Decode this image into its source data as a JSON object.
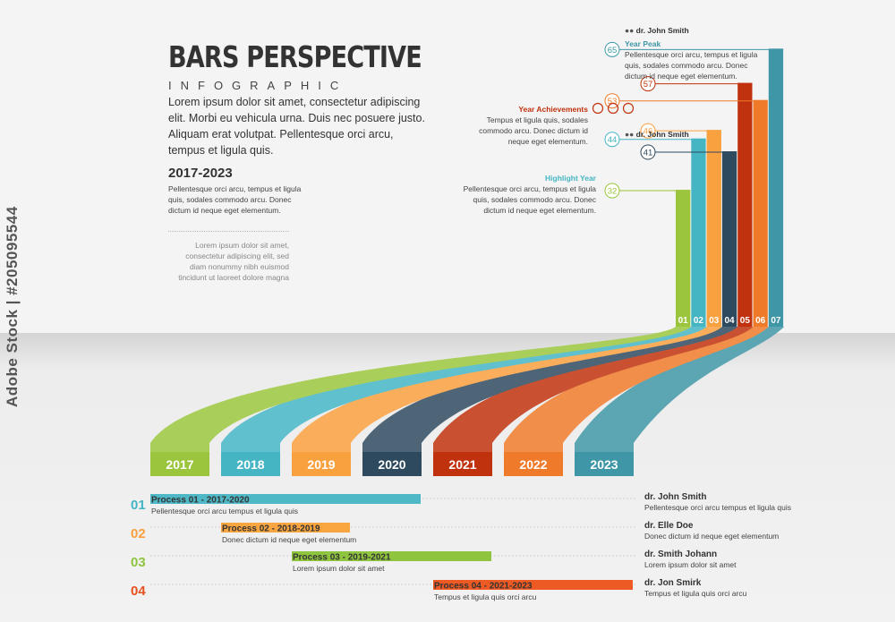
{
  "header": {
    "title": "BARS PERSPECTIVE",
    "subtitle": "INFOGRAPHIC",
    "intro": "Lorem ipsum dolor sit amet, consectetur adipiscing elit. Morbi eu vehicula urna. Duis nec posuere justo. Aliquam erat volutpat. Pellentesque orci arcu, tempus et ligula quis.",
    "range_title": "2017-2023",
    "range_text": "Pellentesque orci arcu, tempus et ligula quis, sodales commodo arcu. Donec  dictum id neque eget elementum.",
    "note_text": "Lorem ipsum dolor sit amet, consectetur adipiscing elit, sed diam nonummy nibh euismod tincidunt ut laoreet dolore magna"
  },
  "watermark": "Adobe Stock | #205095544",
  "chart_data": {
    "type": "bar",
    "categories": [
      "01",
      "02",
      "03",
      "04",
      "05",
      "06",
      "07"
    ],
    "years": [
      "2017",
      "2018",
      "2019",
      "2020",
      "2021",
      "2022",
      "2023"
    ],
    "values": [
      32,
      44,
      46,
      41,
      57,
      53,
      65
    ],
    "colors": [
      "#9bc53d",
      "#45b5c4",
      "#f9a03f",
      "#2e4a5f",
      "#c0320e",
      "#ee7a2a",
      "#3f96a6"
    ],
    "ylim": [
      0,
      68
    ]
  },
  "callouts": {
    "year_peak": {
      "person": "dr. John Smith",
      "title": "Year Peak",
      "text": "Pellentesque orci arcu, tempus et ligula quis, sodales commodo arcu. Donec dictum id neque eget elementum."
    },
    "year_achievements": {
      "title": "Year Achievements",
      "text": "Tempus et ligula quis, sodales commodo arcu. Donec dictum id neque eget elementum."
    },
    "bar06_person": "dr. John Smith",
    "highlight_year": {
      "title": "Highlight Year",
      "text": "Pellentesque orci arcu, tempus et ligula quis, sodales commodo arcu. Donec dictum id neque eget elementum."
    }
  },
  "processes": [
    {
      "num": "01",
      "label": "Process 01 - 2017-2020",
      "desc": "Pellentesque orci arcu tempus et ligula quis",
      "start": 2017,
      "end": 2020,
      "color": "#4fb8c6",
      "num_color": "#45b5c4",
      "person": "dr. John Smith",
      "person_desc": "Pellentesque orci arcu tempus et ligula quis"
    },
    {
      "num": "02",
      "label": "Process 02 - 2018-2019",
      "desc": "Donec dictum id neque eget elementum",
      "start": 2018,
      "end": 2019,
      "color": "#f9a640",
      "num_color": "#f9a03f",
      "person": "dr. Elle Doe",
      "person_desc": "Donec dictum id neque eget elementum"
    },
    {
      "num": "03",
      "label": "Process 03 - 2019-2021",
      "desc": "Lorem ipsum dolor sit amet",
      "start": 2019,
      "end": 2021,
      "color": "#8fc43f",
      "num_color": "#8fc43f",
      "person": "dr. Smith Johann",
      "person_desc": "Lorem ipsum dolor sit amet"
    },
    {
      "num": "04",
      "label": "Process 04 - 2021-2023",
      "desc": "Tempus et ligula quis orci arcu",
      "start": 2021,
      "end": 2023,
      "color": "#ee5a24",
      "num_color": "#e8501e",
      "person": "dr. Jon Smirk",
      "person_desc": "Tempus et ligula quis orci arcu"
    }
  ]
}
